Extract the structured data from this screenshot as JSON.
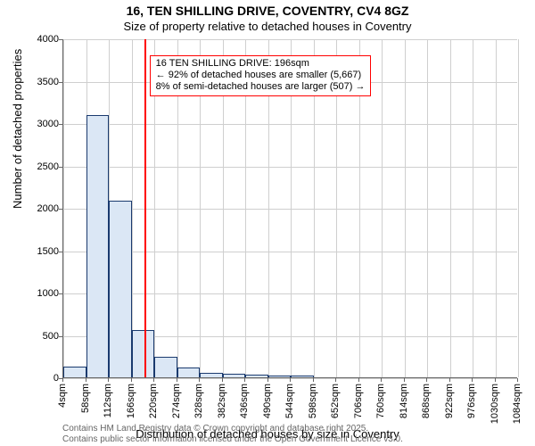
{
  "title": "16, TEN SHILLING DRIVE, COVENTRY, CV4 8GZ",
  "subtitle": "Size of property relative to detached houses in Coventry",
  "title_fontsize": 14,
  "subtitle_fontsize": 13,
  "axis_label_fontsize": 13,
  "tick_fontsize": 11,
  "footer_fontsize": 10,
  "annotation_fontsize": 11,
  "chart": {
    "type": "histogram",
    "y_label": "Number of detached properties",
    "x_label": "Distribution of detached houses by size in Coventry",
    "ylim": [
      0,
      4000
    ],
    "yticks": [
      0,
      500,
      1000,
      1500,
      2000,
      2500,
      3000,
      3500,
      4000
    ],
    "xticks": [
      "4sqm",
      "58sqm",
      "112sqm",
      "166sqm",
      "220sqm",
      "274sqm",
      "328sqm",
      "382sqm",
      "436sqm",
      "490sqm",
      "544sqm",
      "598sqm",
      "652sqm",
      "706sqm",
      "760sqm",
      "814sqm",
      "868sqm",
      "922sqm",
      "976sqm",
      "1030sqm",
      "1084sqm"
    ],
    "bars": [
      130,
      3100,
      2080,
      560,
      240,
      120,
      50,
      40,
      30,
      25,
      20,
      0,
      0,
      0,
      0,
      0,
      0,
      0,
      0,
      0
    ],
    "bar_fill": "#dbe7f5",
    "bar_stroke": "#1a3a6e",
    "grid_color": "#cfcfcf",
    "background": "#ffffff",
    "ref_line_x": 196,
    "ref_line_color": "#ff0000",
    "x_min": 4,
    "x_max": 1084
  },
  "annotation": {
    "line1": "16 TEN SHILLING DRIVE: 196sqm",
    "line2": "← 92% of detached houses are smaller (5,667)",
    "line3": "8% of semi-detached houses are larger (507) →",
    "border_color": "#ff0000"
  },
  "footer1": "Contains HM Land Registry data © Crown copyright and database right 2025.",
  "footer2": "Contains public sector information licensed under the Open Government Licence v3.0.",
  "footer_color": "#666666"
}
